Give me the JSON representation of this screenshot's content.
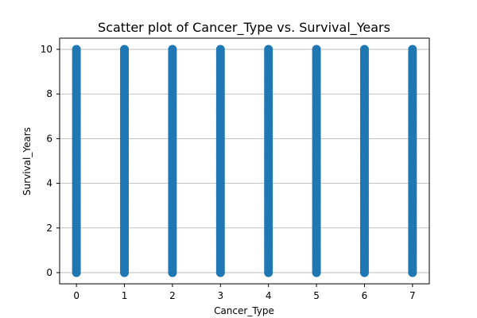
{
  "chart_data": {
    "type": "scatter",
    "title": "Scatter plot of Cancer_Type vs. Survival_Years",
    "xlabel": "Cancer_Type",
    "ylabel": "Survival_Years",
    "x_ticks": [
      "0",
      "1",
      "2",
      "3",
      "4",
      "5",
      "6",
      "7"
    ],
    "y_ticks": [
      "0",
      "2",
      "4",
      "6",
      "8",
      "10"
    ],
    "xlim": [
      -0.35,
      7.35
    ],
    "ylim": [
      -0.5,
      10.5
    ],
    "grid": "horizontal",
    "color": "#1f77b4",
    "series": [
      {
        "x": [
          0,
          1,
          2,
          3,
          4,
          5,
          6,
          7
        ],
        "y_range": [
          0,
          10
        ],
        "y_step": 0.1
      }
    ]
  }
}
